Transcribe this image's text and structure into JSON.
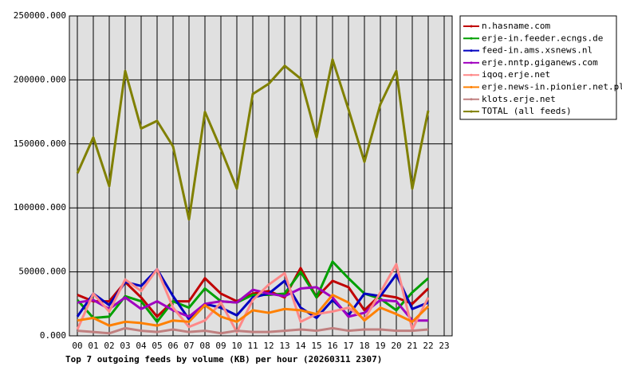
{
  "chart_data": {
    "type": "line",
    "title": "Top 7 outgoing feeds by volume (KB) per hour (20260311 2307)",
    "categories": [
      "00",
      "01",
      "02",
      "03",
      "04",
      "05",
      "06",
      "07",
      "08",
      "09",
      "10",
      "11",
      "12",
      "13",
      "14",
      "15",
      "16",
      "17",
      "18",
      "19",
      "20",
      "21",
      "22",
      "23"
    ],
    "ylim": [
      0,
      250000
    ],
    "yticks": [
      {
        "value": 0,
        "label": "0.000"
      },
      {
        "value": 50000,
        "label": "50000.000"
      },
      {
        "value": 100000,
        "label": "100000.000"
      },
      {
        "value": 150000,
        "label": "150000.000"
      },
      {
        "value": 200000,
        "label": "200000.000"
      },
      {
        "value": 250000,
        "label": "250000.000"
      }
    ],
    "grid": true,
    "legend": "right",
    "series": [
      {
        "name": "n.hasname.com",
        "color": "#c00000",
        "values": [
          32000,
          27000,
          27000,
          42000,
          30000,
          15000,
          27000,
          27000,
          45000,
          33000,
          27000,
          33000,
          35000,
          30000,
          53000,
          30000,
          43000,
          38000,
          20000,
          32000,
          30000,
          25000,
          37000,
          null
        ]
      },
      {
        "name": "erje-in.feeder.ecngs.de",
        "color": "#00a000",
        "values": [
          28000,
          14000,
          15000,
          31000,
          27000,
          11000,
          27000,
          22000,
          37000,
          27000,
          26000,
          32000,
          32000,
          33000,
          50000,
          30000,
          58000,
          45000,
          33000,
          29000,
          20000,
          34000,
          45000,
          null
        ]
      },
      {
        "name": "feed-in.ams.xsnews.nl",
        "color": "#0000c0",
        "values": [
          15000,
          33000,
          24000,
          42000,
          39000,
          52000,
          31000,
          13000,
          25000,
          22000,
          16000,
          30000,
          33000,
          43000,
          22000,
          14000,
          28000,
          16000,
          33000,
          31000,
          48000,
          21000,
          26000,
          null
        ]
      },
      {
        "name": "erje.nntp.giganews.com",
        "color": "#a000c0",
        "values": [
          26000,
          28000,
          21000,
          30000,
          21000,
          27000,
          20000,
          15000,
          25000,
          27000,
          26000,
          36000,
          33000,
          31000,
          37000,
          38000,
          30000,
          15000,
          18000,
          28000,
          27000,
          12000,
          12000,
          null
        ]
      },
      {
        "name": "iqoq.erje.net",
        "color": "#ff8888",
        "values": [
          5000,
          33000,
          19000,
          44000,
          35000,
          52000,
          22000,
          7000,
          12000,
          26000,
          3000,
          28000,
          40000,
          49000,
          11000,
          17000,
          19000,
          22000,
          13000,
          34000,
          56000,
          5000,
          30000,
          null
        ]
      },
      {
        "name": "erje.news-in.pionier.net.pl",
        "color": "#ff8000",
        "values": [
          12000,
          14000,
          8000,
          11000,
          10000,
          8000,
          12000,
          11000,
          24000,
          15000,
          11000,
          20000,
          18000,
          21000,
          20000,
          17000,
          32000,
          26000,
          12000,
          22000,
          17000,
          11000,
          23000,
          null
        ]
      },
      {
        "name": "klots.erje.net",
        "color": "#c08080",
        "values": [
          4000,
          3000,
          2000,
          6000,
          4000,
          3000,
          5000,
          3000,
          4000,
          2000,
          4000,
          3000,
          3000,
          4000,
          5000,
          4000,
          6000,
          4000,
          5000,
          5000,
          4000,
          4000,
          5000,
          null
        ]
      },
      {
        "name": "TOTAL (all feeds)",
        "color": "#808000",
        "values": [
          127000,
          155000,
          117000,
          207000,
          162000,
          168000,
          148000,
          91000,
          175000,
          146000,
          115000,
          189000,
          197000,
          211000,
          201000,
          155000,
          216000,
          177000,
          136000,
          181000,
          207000,
          115000,
          176000,
          null
        ]
      }
    ]
  }
}
